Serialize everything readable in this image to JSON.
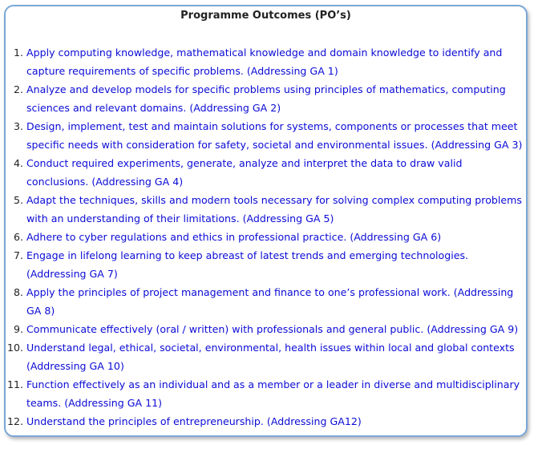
{
  "title": "Programme Outcomes (PO’s)",
  "items": [
    {
      "num": "1.",
      "text": "Apply computing knowledge, mathematical knowledge and domain knowledge to identify and\ncapture requirements of specific problems.   (Addressing GA 1)"
    },
    {
      "num": "2.",
      "text": "Analyze and develop models for specific problems using principles of mathematics, computing\nsciences and relevant domains.  (Addressing GA 2)"
    },
    {
      "num": "3.",
      "text": "Design, implement, test and maintain solutions for systems, components or processes that meet\nspecific needs with consideration for safety, societal and environmental issues. (Addressing GA 3)"
    },
    {
      "num": "4.",
      "text": "Conduct required experiments, generate, analyze and interpret the data to draw valid\nconclusions.  (Addressing GA 4)"
    },
    {
      "num": "5.",
      "text": "Adapt the techniques, skills and modern tools necessary for solving complex computing problems\nwith an understanding of their limitations. (Addressing GA 5)"
    },
    {
      "num": "6.",
      "text": "Adhere to cyber regulations and ethics in professional practice. (Addressing GA 6)"
    },
    {
      "num": "7.",
      "text": "Engage in lifelong learning to keep abreast of latest trends and emerging technologies.\n(Addressing GA 7)"
    },
    {
      "num": "8.",
      "text": "Apply the principles of project management and finance to one’s professional work. (Addressing\nGA 8)"
    },
    {
      "num": "9.",
      "text": "Communicate effectively (oral / written) with professionals and general public. (Addressing GA 9)"
    },
    {
      "num": "10.",
      "text": "Understand legal, ethical, societal, environmental, health issues within local and global contexts\n(Addressing GA 10)"
    },
    {
      "num": "11.",
      "text": "Function effectively as an individual and as a member or a leader in diverse and multidisciplinary\nteams.  (Addressing GA 11)"
    },
    {
      "num": "12.",
      "text": "Understand the principles of entrepreneurship.  (Addressing GA12)"
    }
  ]
}
